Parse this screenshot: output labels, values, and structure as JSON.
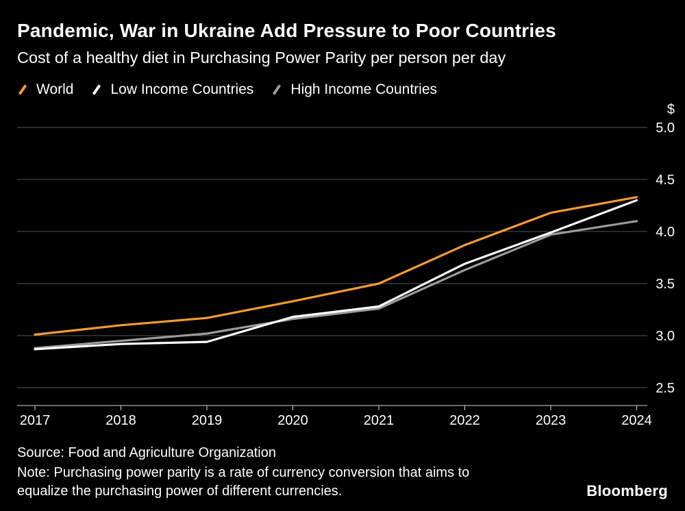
{
  "header": {
    "title": "Pandemic, War in Ukraine Add Pressure to Poor Countries",
    "subtitle": "Cost of a healthy diet in Purchasing Power Parity per person per day"
  },
  "chart_data": {
    "type": "line",
    "title": "Pandemic, War in Ukraine Add Pressure to Poor Countries",
    "subtitle": "Cost of a healthy diet in Purchasing Power Parity per person per day",
    "unit_label": "$",
    "categories": [
      "2017",
      "2018",
      "2019",
      "2020",
      "2021",
      "2022",
      "2023",
      "2024"
    ],
    "series": [
      {
        "name": "World",
        "color": "#F59B33",
        "values": [
          3.01,
          3.1,
          3.17,
          3.33,
          3.5,
          3.87,
          4.18,
          4.33
        ]
      },
      {
        "name": "Low Income Countries",
        "color": "#FFFFFF",
        "values": [
          2.87,
          2.92,
          2.94,
          3.18,
          3.28,
          3.69,
          3.99,
          4.3
        ]
      },
      {
        "name": "High Income Countries",
        "color": "#9C9C9C",
        "values": [
          2.88,
          2.95,
          3.02,
          3.16,
          3.26,
          3.63,
          3.97,
          4.1
        ]
      }
    ],
    "y_ticks": [
      5.0,
      4.5,
      4.0,
      3.5,
      3.0,
      2.5
    ],
    "y_tick_labels": [
      "5.0",
      "4.5",
      "4.0",
      "3.5",
      "3.0",
      "2.5"
    ],
    "ylim": [
      2.5,
      5.0
    ],
    "grid": true,
    "legend_position": "top-left"
  },
  "style": {
    "background_color": "#000000",
    "text_color": "#FFFFFF",
    "grid_color": "#565656",
    "axis_color": "#D6D6D6",
    "line_width": 3.2
  },
  "footer": {
    "source": "Source: Food and Agriculture Organization",
    "note_lines": [
      "Note: Purchasing power parity is a rate of currency conversion that aims to",
      "equalize the purchasing power of different currencies."
    ],
    "brand": "Bloomberg"
  }
}
